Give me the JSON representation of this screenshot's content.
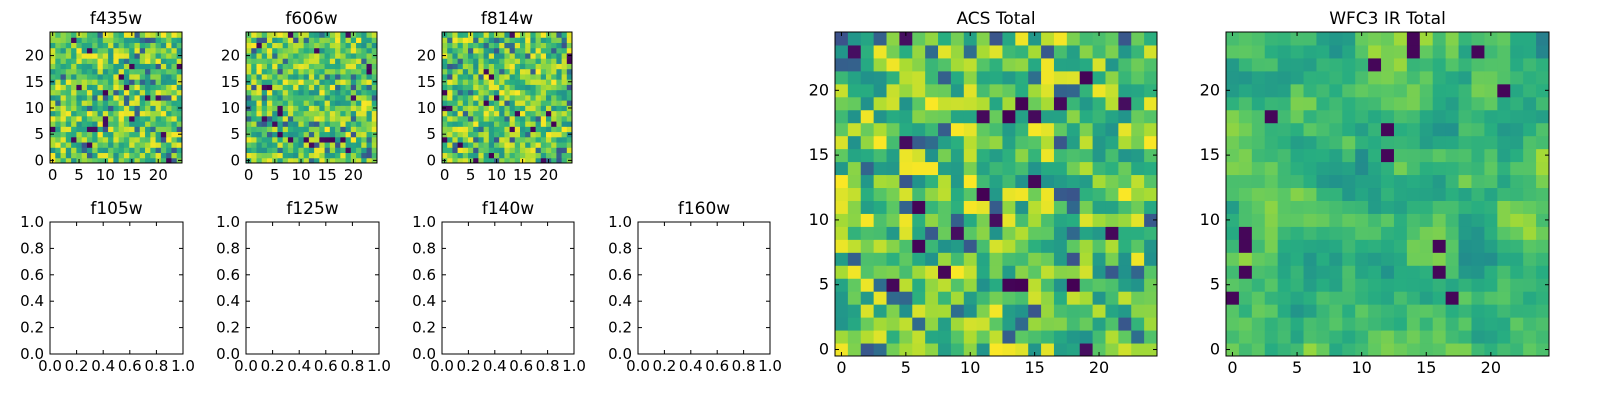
{
  "chart_data": [
    {
      "title": "f435w",
      "type": "heatmap",
      "rows": 25,
      "cols": 25,
      "colormap": "viridis",
      "xticks": [
        "0",
        "5",
        "10",
        "15",
        "20"
      ],
      "yticks": [
        "0",
        "5",
        "10",
        "15",
        "20"
      ],
      "xlim": [
        -0.5,
        24.5
      ],
      "ylim": [
        -0.5,
        24.5
      ]
    },
    {
      "title": "f606w",
      "type": "heatmap",
      "rows": 25,
      "cols": 25,
      "colormap": "viridis",
      "xticks": [
        "0",
        "5",
        "10",
        "15",
        "20"
      ],
      "yticks": [
        "0",
        "5",
        "10",
        "15",
        "20"
      ],
      "xlim": [
        -0.5,
        24.5
      ],
      "ylim": [
        -0.5,
        24.5
      ]
    },
    {
      "title": "f814w",
      "type": "heatmap",
      "rows": 25,
      "cols": 25,
      "colormap": "viridis",
      "xticks": [
        "0",
        "5",
        "10",
        "15",
        "20"
      ],
      "yticks": [
        "0",
        "5",
        "10",
        "15",
        "20"
      ],
      "xlim": [
        -0.5,
        24.5
      ],
      "ylim": [
        -0.5,
        24.5
      ]
    },
    {
      "title": "f105w",
      "type": "empty",
      "xticks": [
        "0.0",
        "0.2",
        "0.4",
        "0.6",
        "0.8",
        "1.0"
      ],
      "yticks": [
        "0.0",
        "0.2",
        "0.4",
        "0.6",
        "0.8",
        "1.0"
      ],
      "xlim": [
        0,
        1
      ],
      "ylim": [
        0,
        1
      ]
    },
    {
      "title": "f125w",
      "type": "empty",
      "xticks": [
        "0.0",
        "0.2",
        "0.4",
        "0.6",
        "0.8",
        "1.0"
      ],
      "yticks": [
        "0.0",
        "0.2",
        "0.4",
        "0.6",
        "0.8",
        "1.0"
      ],
      "xlim": [
        0,
        1
      ],
      "ylim": [
        0,
        1
      ]
    },
    {
      "title": "f140w",
      "type": "empty",
      "xticks": [
        "0.0",
        "0.2",
        "0.4",
        "0.6",
        "0.8",
        "1.0"
      ],
      "yticks": [
        "0.0",
        "0.2",
        "0.4",
        "0.6",
        "0.8",
        "1.0"
      ],
      "xlim": [
        0,
        1
      ],
      "ylim": [
        0,
        1
      ]
    },
    {
      "title": "f160w",
      "type": "empty",
      "xticks": [
        "0.0",
        "0.2",
        "0.4",
        "0.6",
        "0.8",
        "1.0"
      ],
      "yticks": [
        "0.0",
        "0.2",
        "0.4",
        "0.6",
        "0.8",
        "1.0"
      ],
      "xlim": [
        0,
        1
      ],
      "ylim": [
        0,
        1
      ]
    },
    {
      "title": "ACS Total",
      "type": "heatmap",
      "rows": 25,
      "cols": 25,
      "colormap": "viridis",
      "xticks": [
        "0",
        "5",
        "10",
        "15",
        "20"
      ],
      "yticks": [
        "0",
        "5",
        "10",
        "15",
        "20"
      ],
      "xlim": [
        -0.5,
        24.5
      ],
      "ylim": [
        -0.5,
        24.5
      ]
    },
    {
      "title": "WFC3 IR Total",
      "type": "heatmap",
      "rows": 25,
      "cols": 25,
      "colormap": "viridis",
      "smooth": true,
      "xticks": [
        "0",
        "5",
        "10",
        "15",
        "20"
      ],
      "yticks": [
        "0",
        "5",
        "10",
        "15",
        "20"
      ],
      "xlim": [
        -0.5,
        24.5
      ],
      "ylim": [
        -0.5,
        24.5
      ]
    }
  ]
}
